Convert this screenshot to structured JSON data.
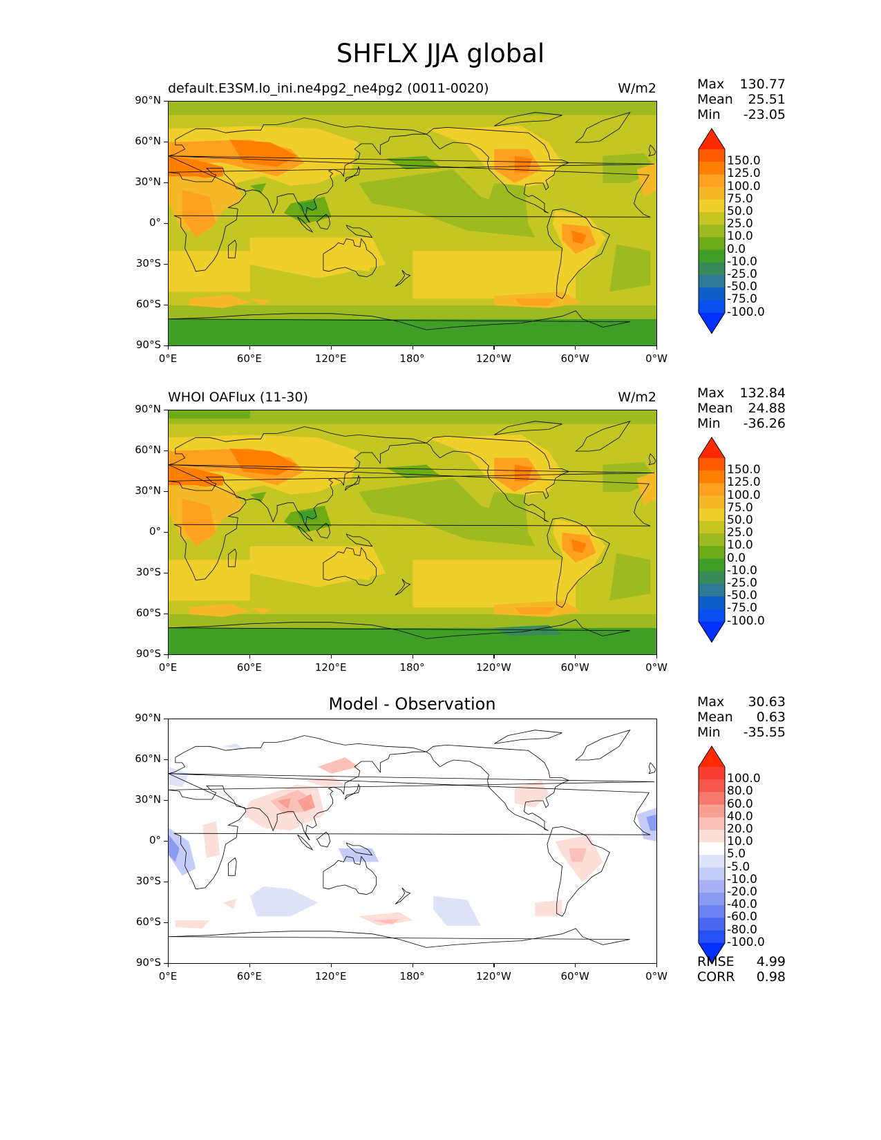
{
  "title": "SHFLX JJA global",
  "panels": [
    {
      "title": "default.E3SM.lo_ini.ne4pg2_ne4pg2 (0011-0020)",
      "units": "W/m2",
      "stats": [
        {
          "label": "Max",
          "value": "130.77"
        },
        {
          "label": "Mean",
          "value": "25.51"
        },
        {
          "label": "Min",
          "value": "-23.05"
        }
      ]
    },
    {
      "title": "WHOI OAFlux (11-30)",
      "units": "W/m2",
      "stats": [
        {
          "label": "Max",
          "value": "132.84"
        },
        {
          "label": "Mean",
          "value": "24.88"
        },
        {
          "label": "Min",
          "value": "-36.26"
        }
      ]
    },
    {
      "title": "Model - Observation",
      "units": "",
      "stats": [
        {
          "label": "Max",
          "value": "30.63"
        },
        {
          "label": "Mean",
          "value": "0.63"
        },
        {
          "label": "Min",
          "value": "-35.55"
        }
      ],
      "metrics": [
        {
          "label": "RMSE",
          "value": "4.99"
        },
        {
          "label": "CORR",
          "value": "0.98"
        }
      ]
    }
  ],
  "lat_ticks": [
    "90°N",
    "60°N",
    "30°N",
    "0°",
    "30°S",
    "60°S",
    "90°S"
  ],
  "lon_ticks": [
    "0°E",
    "60°E",
    "120°E",
    "180°",
    "120°W",
    "60°W",
    "0°W"
  ],
  "colorbar_field": {
    "labels": [
      "150.0",
      "125.0",
      "100.0",
      "75.0",
      "50.0",
      "25.0",
      "10.0",
      "0.0",
      "-10.0",
      "-25.0",
      "-50.0",
      "-75.0",
      "-100.0"
    ],
    "colors": [
      "#ff2a00",
      "#ff5a00",
      "#ff8000",
      "#ffa020",
      "#f5b827",
      "#f0cf2a",
      "#c5c623",
      "#9dba20",
      "#6cab16",
      "#3f9e28",
      "#388a58",
      "#2d7996",
      "#0e5ec9",
      "#0a50f0",
      "#0030ff"
    ]
  },
  "colorbar_diff": {
    "labels": [
      "100.0",
      "80.0",
      "60.0",
      "40.0",
      "20.0",
      "10.0",
      "5.0",
      "-5.0",
      "-10.0",
      "-20.0",
      "-40.0",
      "-60.0",
      "-80.0",
      "-100.0"
    ],
    "colors": [
      "#ff2a00",
      "#f73d30",
      "#f5584c",
      "#f77a6e",
      "#f8a094",
      "#fbc1b8",
      "#fddfda",
      "#ffffff",
      "#dfe3fa",
      "#c5ccf7",
      "#a7b3f4",
      "#8a9bf2",
      "#6b82f0",
      "#4b66f0",
      "#2550f5",
      "#0030ff"
    ]
  }
}
